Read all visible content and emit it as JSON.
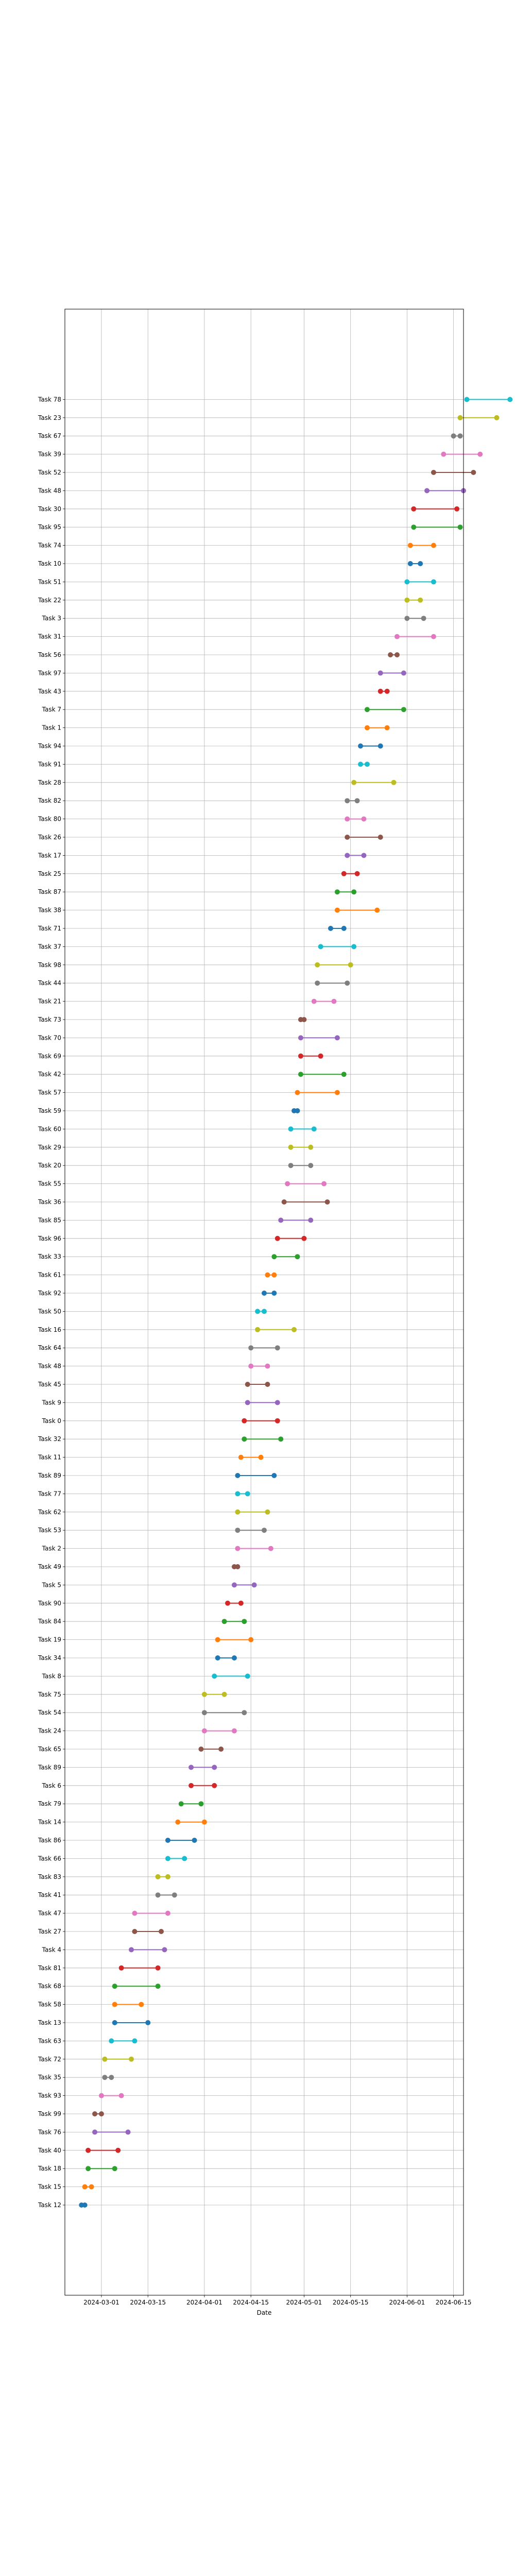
{
  "chart_data": {
    "type": "dumbbell",
    "xlabel": "Date",
    "ylabel": "",
    "title": "",
    "grid": true,
    "x_axis_type": "date",
    "xlim": [
      "2024-02-19",
      "2024-06-18"
    ],
    "x_ticks": [
      "2024-03-01",
      "2024-03-15",
      "2024-04-01",
      "2024-04-15",
      "2024-05-01",
      "2024-05-15",
      "2024-06-01",
      "2024-06-15"
    ],
    "palette": [
      "#1f77b4",
      "#ff7f0e",
      "#2ca02c",
      "#d62728",
      "#9467bd",
      "#8c564b",
      "#e377c2",
      "#7f7f7f",
      "#bcbd22",
      "#17becf"
    ],
    "tasks": [
      {
        "name": "Task 12",
        "start": "2024-02-24",
        "end": "2024-02-25"
      },
      {
        "name": "Task 15",
        "start": "2024-02-25",
        "end": "2024-02-27"
      },
      {
        "name": "Task 18",
        "start": "2024-02-26",
        "end": "2024-03-05"
      },
      {
        "name": "Task 40",
        "start": "2024-02-26",
        "end": "2024-03-06"
      },
      {
        "name": "Task 76",
        "start": "2024-02-28",
        "end": "2024-03-09"
      },
      {
        "name": "Task 99",
        "start": "2024-02-28",
        "end": "2024-03-01"
      },
      {
        "name": "Task 93",
        "start": "2024-03-01",
        "end": "2024-03-07"
      },
      {
        "name": "Task 35",
        "start": "2024-03-02",
        "end": "2024-03-04"
      },
      {
        "name": "Task 72",
        "start": "2024-03-02",
        "end": "2024-03-10"
      },
      {
        "name": "Task 63",
        "start": "2024-03-04",
        "end": "2024-03-11"
      },
      {
        "name": "Task 13",
        "start": "2024-03-05",
        "end": "2024-03-15"
      },
      {
        "name": "Task 58",
        "start": "2024-03-05",
        "end": "2024-03-13"
      },
      {
        "name": "Task 68",
        "start": "2024-03-05",
        "end": "2024-03-18"
      },
      {
        "name": "Task 81",
        "start": "2024-03-07",
        "end": "2024-03-18"
      },
      {
        "name": "Task 4",
        "start": "2024-03-10",
        "end": "2024-03-20"
      },
      {
        "name": "Task 27",
        "start": "2024-03-11",
        "end": "2024-03-19"
      },
      {
        "name": "Task 47",
        "start": "2024-03-11",
        "end": "2024-03-21"
      },
      {
        "name": "Task 41",
        "start": "2024-03-18",
        "end": "2024-03-23"
      },
      {
        "name": "Task 83",
        "start": "2024-03-18",
        "end": "2024-03-21"
      },
      {
        "name": "Task 66",
        "start": "2024-03-21",
        "end": "2024-03-26"
      },
      {
        "name": "Task 86",
        "start": "2024-03-21",
        "end": "2024-03-29"
      },
      {
        "name": "Task 14",
        "start": "2024-03-24",
        "end": "2024-04-01"
      },
      {
        "name": "Task 79",
        "start": "2024-03-25",
        "end": "2024-03-31"
      },
      {
        "name": "Task 6",
        "start": "2024-03-28",
        "end": "2024-04-04"
      },
      {
        "name": "Task 89",
        "start": "2024-03-28",
        "end": "2024-04-04"
      },
      {
        "name": "Task 65",
        "start": "2024-03-31",
        "end": "2024-04-06"
      },
      {
        "name": "Task 24",
        "start": "2024-04-01",
        "end": "2024-04-10"
      },
      {
        "name": "Task 54",
        "start": "2024-04-01",
        "end": "2024-04-13"
      },
      {
        "name": "Task 75",
        "start": "2024-04-01",
        "end": "2024-04-07"
      },
      {
        "name": "Task 8",
        "start": "2024-04-04",
        "end": "2024-04-14"
      },
      {
        "name": "Task 34",
        "start": "2024-04-05",
        "end": "2024-04-10"
      },
      {
        "name": "Task 19",
        "start": "2024-04-05",
        "end": "2024-04-15"
      },
      {
        "name": "Task 84",
        "start": "2024-04-07",
        "end": "2024-04-13"
      },
      {
        "name": "Task 90",
        "start": "2024-04-08",
        "end": "2024-04-12"
      },
      {
        "name": "Task 5",
        "start": "2024-04-10",
        "end": "2024-04-16"
      },
      {
        "name": "Task 49",
        "start": "2024-04-10",
        "end": "2024-04-11"
      },
      {
        "name": "Task 2",
        "start": "2024-04-11",
        "end": "2024-04-21"
      },
      {
        "name": "Task 53",
        "start": "2024-04-11",
        "end": "2024-04-19"
      },
      {
        "name": "Task 62",
        "start": "2024-04-11",
        "end": "2024-04-20"
      },
      {
        "name": "Task 77",
        "start": "2024-04-11",
        "end": "2024-04-14"
      },
      {
        "name": "Task 89",
        "start": "2024-04-11",
        "end": "2024-04-22"
      },
      {
        "name": "Task 11",
        "start": "2024-04-12",
        "end": "2024-04-18"
      },
      {
        "name": "Task 32",
        "start": "2024-04-13",
        "end": "2024-04-24"
      },
      {
        "name": "Task 0",
        "start": "2024-04-13",
        "end": "2024-04-23"
      },
      {
        "name": "Task 9",
        "start": "2024-04-14",
        "end": "2024-04-23"
      },
      {
        "name": "Task 45",
        "start": "2024-04-14",
        "end": "2024-04-20"
      },
      {
        "name": "Task 48",
        "start": "2024-04-15",
        "end": "2024-04-20"
      },
      {
        "name": "Task 64",
        "start": "2024-04-15",
        "end": "2024-04-23"
      },
      {
        "name": "Task 16",
        "start": "2024-04-17",
        "end": "2024-04-28"
      },
      {
        "name": "Task 50",
        "start": "2024-04-17",
        "end": "2024-04-19"
      },
      {
        "name": "Task 92",
        "start": "2024-04-19",
        "end": "2024-04-22"
      },
      {
        "name": "Task 61",
        "start": "2024-04-20",
        "end": "2024-04-22"
      },
      {
        "name": "Task 33",
        "start": "2024-04-22",
        "end": "2024-04-29"
      },
      {
        "name": "Task 96",
        "start": "2024-04-23",
        "end": "2024-05-01"
      },
      {
        "name": "Task 85",
        "start": "2024-04-24",
        "end": "2024-05-03"
      },
      {
        "name": "Task 36",
        "start": "2024-04-25",
        "end": "2024-05-08"
      },
      {
        "name": "Task 55",
        "start": "2024-04-26",
        "end": "2024-05-07"
      },
      {
        "name": "Task 20",
        "start": "2024-04-27",
        "end": "2024-05-03"
      },
      {
        "name": "Task 29",
        "start": "2024-04-27",
        "end": "2024-05-03"
      },
      {
        "name": "Task 60",
        "start": "2024-04-27",
        "end": "2024-05-04"
      },
      {
        "name": "Task 59",
        "start": "2024-04-28",
        "end": "2024-04-29"
      },
      {
        "name": "Task 57",
        "start": "2024-04-29",
        "end": "2024-05-11"
      },
      {
        "name": "Task 42",
        "start": "2024-04-30",
        "end": "2024-05-13"
      },
      {
        "name": "Task 69",
        "start": "2024-04-30",
        "end": "2024-05-06"
      },
      {
        "name": "Task 70",
        "start": "2024-04-30",
        "end": "2024-05-11"
      },
      {
        "name": "Task 73",
        "start": "2024-04-30",
        "end": "2024-05-01"
      },
      {
        "name": "Task 21",
        "start": "2024-05-04",
        "end": "2024-05-10"
      },
      {
        "name": "Task 44",
        "start": "2024-05-05",
        "end": "2024-05-14"
      },
      {
        "name": "Task 98",
        "start": "2024-05-05",
        "end": "2024-05-15"
      },
      {
        "name": "Task 37",
        "start": "2024-05-06",
        "end": "2024-05-16"
      },
      {
        "name": "Task 71",
        "start": "2024-05-09",
        "end": "2024-05-13"
      },
      {
        "name": "Task 38",
        "start": "2024-05-11",
        "end": "2024-05-23"
      },
      {
        "name": "Task 87",
        "start": "2024-05-11",
        "end": "2024-05-16"
      },
      {
        "name": "Task 25",
        "start": "2024-05-13",
        "end": "2024-05-17"
      },
      {
        "name": "Task 17",
        "start": "2024-05-14",
        "end": "2024-05-19"
      },
      {
        "name": "Task 26",
        "start": "2024-05-14",
        "end": "2024-05-24"
      },
      {
        "name": "Task 80",
        "start": "2024-05-14",
        "end": "2024-05-19"
      },
      {
        "name": "Task 82",
        "start": "2024-05-14",
        "end": "2024-05-17"
      },
      {
        "name": "Task 28",
        "start": "2024-05-16",
        "end": "2024-05-28"
      },
      {
        "name": "Task 91",
        "start": "2024-05-18",
        "end": "2024-05-20"
      },
      {
        "name": "Task 94",
        "start": "2024-05-18",
        "end": "2024-05-24"
      },
      {
        "name": "Task 1",
        "start": "2024-05-20",
        "end": "2024-05-26"
      },
      {
        "name": "Task 7",
        "start": "2024-05-20",
        "end": "2024-05-31"
      },
      {
        "name": "Task 43",
        "start": "2024-05-24",
        "end": "2024-05-26"
      },
      {
        "name": "Task 97",
        "start": "2024-05-24",
        "end": "2024-05-31"
      },
      {
        "name": "Task 56",
        "start": "2024-05-27",
        "end": "2024-05-29"
      },
      {
        "name": "Task 31",
        "start": "2024-05-29",
        "end": "2024-06-09"
      },
      {
        "name": "Task 3",
        "start": "2024-06-01",
        "end": "2024-06-06"
      },
      {
        "name": "Task 22",
        "start": "2024-06-01",
        "end": "2024-06-05"
      },
      {
        "name": "Task 51",
        "start": "2024-06-01",
        "end": "2024-06-09"
      },
      {
        "name": "Task 10",
        "start": "2024-06-02",
        "end": "2024-06-05"
      },
      {
        "name": "Task 74",
        "start": "2024-06-02",
        "end": "2024-06-09"
      },
      {
        "name": "Task 95",
        "start": "2024-06-03",
        "end": "2024-06-17"
      },
      {
        "name": "Task 30",
        "start": "2024-06-03",
        "end": "2024-06-16"
      },
      {
        "name": "Task 48",
        "start": "2024-06-07",
        "end": "2024-06-18"
      },
      {
        "name": "Task 52",
        "start": "2024-06-09",
        "end": "2024-06-21"
      },
      {
        "name": "Task 39",
        "start": "2024-06-12",
        "end": "2024-06-23"
      },
      {
        "name": "Task 67",
        "start": "2024-06-15",
        "end": "2024-06-17"
      },
      {
        "name": "Task 23",
        "start": "2024-06-17",
        "end": "2024-06-28"
      },
      {
        "name": "Task 78",
        "start": "2024-06-19",
        "end": "2024-07-02"
      }
    ]
  }
}
